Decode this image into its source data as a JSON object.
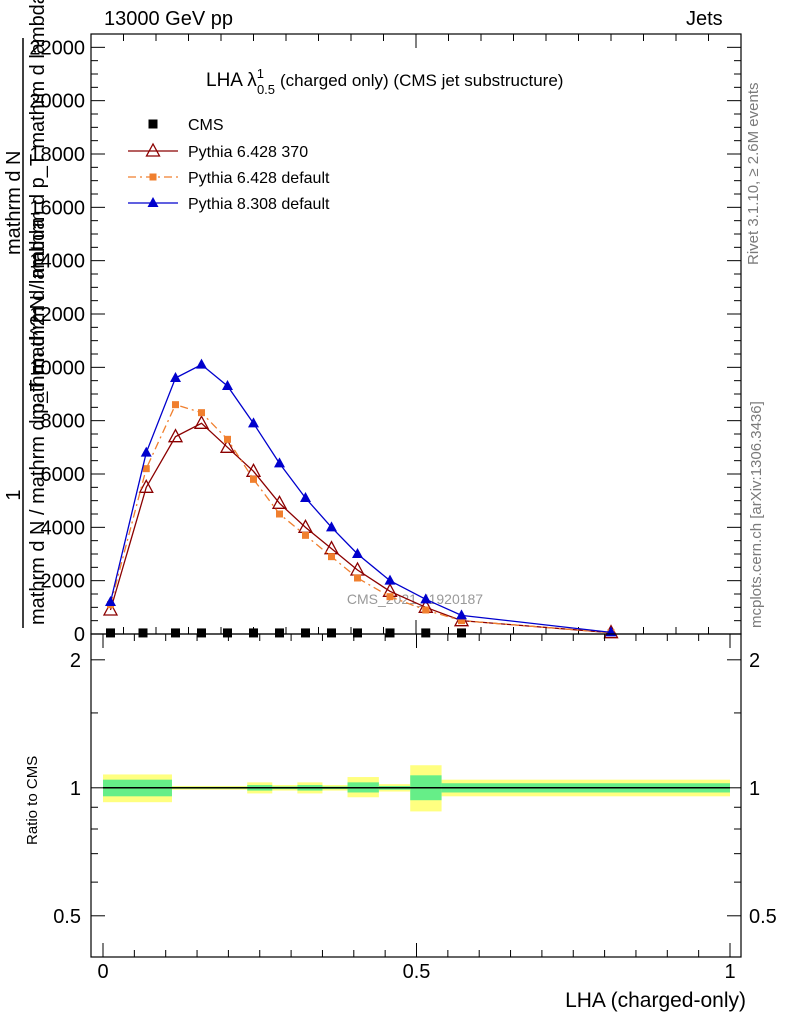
{
  "header": {
    "energy": "13000 GeV pp",
    "process": "Jets"
  },
  "side": {
    "rivet": "Rivet 3.1.10, ≥ 2.6M events",
    "mcplots": "mcplots.cern.ch [arXiv:1306.3436]"
  },
  "watermark": "CMS_2021_I1920187",
  "colors": {
    "cms": "#000000",
    "pythia6_370": "#8b0000",
    "pythia6_default": "#f07f2e",
    "pythia8": "#0000cd",
    "band_outer": "#ffff80",
    "band_inner": "#66ee88"
  },
  "chart_data": [
    {
      "type": "line",
      "title_main": "LHA λ",
      "title_sup": "1",
      "title_sub": "0.5",
      "title_rest": "(charged only) (CMS jet substructure)",
      "ylabel": "1 / mathrm d N / mathrm d p_T mathrm d^2 N / mathrm d p_T mathrm d lambda",
      "ylabel_lines": [
        "1",
        "mathrm d N / mathrm d p_T mathrm d lambda",
        "mathrm d^2 N / mathrm d p_T mathrm d lambda",
        "mathrm d N"
      ],
      "xlim": [
        0,
        1
      ],
      "ylim": [
        0,
        22500
      ],
      "yticks": [
        0,
        2000,
        4000,
        6000,
        8000,
        10000,
        12000,
        14000,
        16000,
        18000,
        20000,
        22000
      ],
      "ytick_labels": [
        "0",
        "2000",
        "4000",
        "6000",
        "8000",
        "10000",
        "12000",
        "14000",
        "16000",
        "18000",
        "20000",
        "22000"
      ],
      "series": [
        {
          "name": "CMS",
          "marker": "square",
          "color": "#000000",
          "x": [
            0.03,
            0.08,
            0.13,
            0.17,
            0.21,
            0.25,
            0.29,
            0.33,
            0.37,
            0.41,
            0.46,
            0.515,
            0.57
          ],
          "y": [
            40,
            40,
            40,
            40,
            40,
            40,
            40,
            40,
            40,
            40,
            40,
            40,
            40
          ]
        },
        {
          "name": "Pythia 6.428 370",
          "marker": "open-triangle",
          "color": "#8b0000",
          "dash": "",
          "x": [
            0.03,
            0.085,
            0.13,
            0.17,
            0.21,
            0.25,
            0.29,
            0.33,
            0.37,
            0.41,
            0.46,
            0.515,
            0.57,
            0.8
          ],
          "y": [
            900,
            5500,
            7400,
            7900,
            7000,
            6100,
            4900,
            4000,
            3200,
            2400,
            1600,
            1000,
            500,
            50
          ]
        },
        {
          "name": "Pythia 6.428 default",
          "marker": "square-small",
          "color": "#f07f2e",
          "dash": "8,4,2,4",
          "x": [
            0.03,
            0.085,
            0.13,
            0.17,
            0.21,
            0.25,
            0.29,
            0.33,
            0.37,
            0.41,
            0.46,
            0.515,
            0.57,
            0.8
          ],
          "y": [
            1100,
            6200,
            8600,
            8300,
            7300,
            5800,
            4500,
            3700,
            2900,
            2100,
            1400,
            900,
            500,
            50
          ]
        },
        {
          "name": "Pythia 8.308 default",
          "marker": "triangle",
          "color": "#0000cd",
          "dash": "",
          "x": [
            0.03,
            0.085,
            0.13,
            0.17,
            0.21,
            0.25,
            0.29,
            0.33,
            0.37,
            0.41,
            0.46,
            0.515,
            0.57,
            0.8
          ],
          "y": [
            1200,
            6800,
            9600,
            10100,
            9300,
            7900,
            6400,
            5100,
            4000,
            3000,
            2000,
            1300,
            700,
            60
          ]
        }
      ]
    },
    {
      "type": "area",
      "ylabel": "Ratio to CMS",
      "xlabel": "LHA (charged-only)",
      "xlim": [
        0,
        1
      ],
      "ylim": [
        0.4,
        2.3
      ],
      "xticks": [
        0,
        0.5,
        1
      ],
      "xtick_labels": [
        "0",
        "0.5",
        "1"
      ],
      "yticks": [
        0.5,
        1,
        2
      ],
      "ytick_labels": [
        "0.5",
        "1",
        "2"
      ],
      "bands": [
        {
          "x0": 0.0,
          "x1": 0.11,
          "outer": [
            0.925,
            1.075
          ],
          "inner": [
            0.955,
            1.045
          ]
        },
        {
          "x0": 0.11,
          "x1": 0.23,
          "outer": [
            0.99,
            1.01
          ],
          "inner": [
            0.995,
            1.005
          ]
        },
        {
          "x0": 0.23,
          "x1": 0.27,
          "outer": [
            0.97,
            1.03
          ],
          "inner": [
            0.985,
            1.015
          ]
        },
        {
          "x0": 0.27,
          "x1": 0.31,
          "outer": [
            0.985,
            1.015
          ],
          "inner": [
            0.993,
            1.007
          ]
        },
        {
          "x0": 0.31,
          "x1": 0.35,
          "outer": [
            0.97,
            1.03
          ],
          "inner": [
            0.985,
            1.015
          ]
        },
        {
          "x0": 0.35,
          "x1": 0.39,
          "outer": [
            0.985,
            1.015
          ],
          "inner": [
            0.993,
            1.007
          ]
        },
        {
          "x0": 0.39,
          "x1": 0.44,
          "outer": [
            0.95,
            1.06
          ],
          "inner": [
            0.975,
            1.03
          ]
        },
        {
          "x0": 0.44,
          "x1": 0.49,
          "outer": [
            0.98,
            1.02
          ],
          "inner": [
            0.99,
            1.01
          ]
        },
        {
          "x0": 0.49,
          "x1": 0.54,
          "outer": [
            0.88,
            1.13
          ],
          "inner": [
            0.935,
            1.07
          ]
        },
        {
          "x0": 0.54,
          "x1": 1.0,
          "outer": [
            0.955,
            1.045
          ],
          "inner": [
            0.975,
            1.025
          ]
        }
      ]
    }
  ]
}
